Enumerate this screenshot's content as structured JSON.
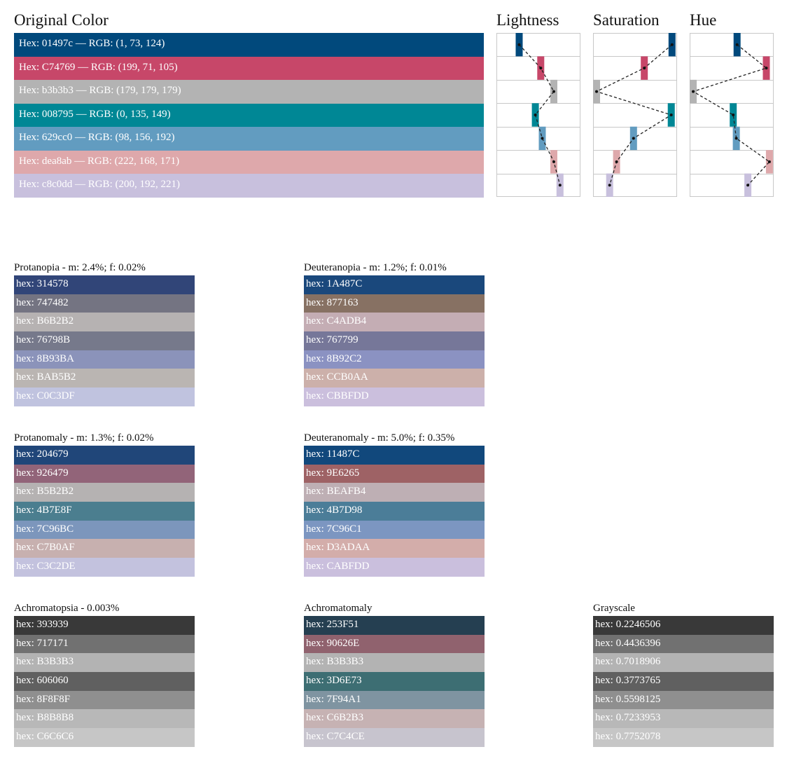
{
  "original": {
    "title": "Original Color",
    "rows": [
      {
        "text": "Hex: 01497c — RGB: (1, 73, 124)",
        "color": "#01497c"
      },
      {
        "text": "Hex: C74769 — RGB: (199, 71, 105)",
        "color": "#c74769"
      },
      {
        "text": "Hex: b3b3b3 — RGB: (179, 179, 179)",
        "color": "#b3b3b3"
      },
      {
        "text": "Hex: 008795 — RGB: (0, 135, 149)",
        "color": "#008795"
      },
      {
        "text": "Hex: 629cc0 — RGB: (98, 156, 192)",
        "color": "#629cc0"
      },
      {
        "text": "Hex: dea8ab — RGB: (222, 168, 171)",
        "color": "#dea8ab"
      },
      {
        "text": "Hex: c8c0dd — RGB: (200, 192, 221)",
        "color": "#c8c0dd"
      }
    ]
  },
  "chart_data": {
    "type": "dot-line",
    "colors": [
      "#01497c",
      "#c74769",
      "#b3b3b3",
      "#008795",
      "#629cc0",
      "#dea8ab",
      "#c8c0dd"
    ],
    "panels": [
      {
        "title": "Lightness",
        "values": [
          0.25,
          0.53,
          0.7,
          0.46,
          0.55,
          0.7,
          0.78
        ]
      },
      {
        "title": "Saturation",
        "values": [
          0.98,
          0.62,
          0.0,
          0.97,
          0.48,
          0.26,
          0.17
        ]
      },
      {
        "title": "Hue",
        "values": [
          0.57,
          0.95,
          0.0,
          0.52,
          0.56,
          0.99,
          0.71
        ]
      }
    ]
  },
  "simulations": [
    {
      "title": "Protanopia - m: 2.4%; f: 0.02%",
      "rows": [
        {
          "hex": "314578",
          "label": "hex: 314578"
        },
        {
          "hex": "747482",
          "label": "hex: 747482"
        },
        {
          "hex": "B6B2B2",
          "label": "hex: B6B2B2"
        },
        {
          "hex": "76798B",
          "label": "hex: 76798B"
        },
        {
          "hex": "8B93BA",
          "label": "hex: 8B93BA"
        },
        {
          "hex": "BAB5B2",
          "label": "hex: BAB5B2"
        },
        {
          "hex": "C0C3DF",
          "label": "hex: C0C3DF"
        }
      ]
    },
    {
      "title": "Deuteranopia - m: 1.2%; f: 0.01%",
      "rows": [
        {
          "hex": "1A487C",
          "label": "hex: 1A487C"
        },
        {
          "hex": "877163",
          "label": "hex: 877163"
        },
        {
          "hex": "C4ADB4",
          "label": "hex: C4ADB4"
        },
        {
          "hex": "767799",
          "label": "hex: 767799"
        },
        {
          "hex": "8B92C2",
          "label": "hex: 8B92C2"
        },
        {
          "hex": "CCB0AA",
          "label": "hex: CCB0AA"
        },
        {
          "hex": "CBBFDD",
          "label": "hex: CBBFDD"
        }
      ]
    },
    {
      "title": "Protanomaly - m: 1.3%; f: 0.02%",
      "rows": [
        {
          "hex": "204679",
          "label": "hex: 204679"
        },
        {
          "hex": "926479",
          "label": "hex: 926479"
        },
        {
          "hex": "B5B2B2",
          "label": "hex: B5B2B2"
        },
        {
          "hex": "4B7E8F",
          "label": "hex: 4B7E8F"
        },
        {
          "hex": "7C96BC",
          "label": "hex: 7C96BC"
        },
        {
          "hex": "C7B0AF",
          "label": "hex: C7B0AF"
        },
        {
          "hex": "C3C2DE",
          "label": "hex: C3C2DE"
        }
      ]
    },
    {
      "title": "Deuteranomaly - m: 5.0%; f: 0.35%",
      "rows": [
        {
          "hex": "11487C",
          "label": "hex: 11487C"
        },
        {
          "hex": "9E6265",
          "label": "hex: 9E6265"
        },
        {
          "hex": "BEAFB4",
          "label": "hex: BEAFB4"
        },
        {
          "hex": "4B7D98",
          "label": "hex: 4B7D98"
        },
        {
          "hex": "7C96C1",
          "label": "hex: 7C96C1"
        },
        {
          "hex": "D3ADAA",
          "label": "hex: D3ADAA"
        },
        {
          "hex": "CABFDD",
          "label": "hex: CABFDD"
        }
      ]
    },
    {
      "title": "Achromatopsia -  0.003%",
      "rows": [
        {
          "hex": "393939",
          "label": "hex: 393939"
        },
        {
          "hex": "717171",
          "label": "hex: 717171"
        },
        {
          "hex": "B3B3B3",
          "label": "hex: B3B3B3"
        },
        {
          "hex": "606060",
          "label": "hex: 606060"
        },
        {
          "hex": "8F8F8F",
          "label": "hex: 8F8F8F"
        },
        {
          "hex": "B8B8B8",
          "label": "hex: B8B8B8"
        },
        {
          "hex": "C6C6C6",
          "label": "hex: C6C6C6"
        }
      ]
    },
    {
      "title": "Achromatomaly",
      "rows": [
        {
          "hex": "253F51",
          "label": "hex: 253F51"
        },
        {
          "hex": "90626E",
          "label": "hex: 90626E"
        },
        {
          "hex": "B3B3B3",
          "label": "hex: B3B3B3"
        },
        {
          "hex": "3D6E73",
          "label": "hex: 3D6E73"
        },
        {
          "hex": "7F94A1",
          "label": "hex: 7F94A1"
        },
        {
          "hex": "C6B2B3",
          "label": "hex: C6B2B3"
        },
        {
          "hex": "C7C4CE",
          "label": "hex: C7C4CE"
        }
      ]
    },
    {
      "title": "Grayscale",
      "rows": [
        {
          "hex": "393939",
          "label": "hex: 0.2246506"
        },
        {
          "hex": "717171",
          "label": "hex: 0.4436396"
        },
        {
          "hex": "B3B3B3",
          "label": "hex: 0.7018906"
        },
        {
          "hex": "606060",
          "label": "hex: 0.3773765"
        },
        {
          "hex": "8F8F8F",
          "label": "hex: 0.5598125"
        },
        {
          "hex": "B8B8B8",
          "label": "hex: 0.7233953"
        },
        {
          "hex": "C6C6C6",
          "label": "hex: 0.7752078"
        }
      ]
    }
  ]
}
